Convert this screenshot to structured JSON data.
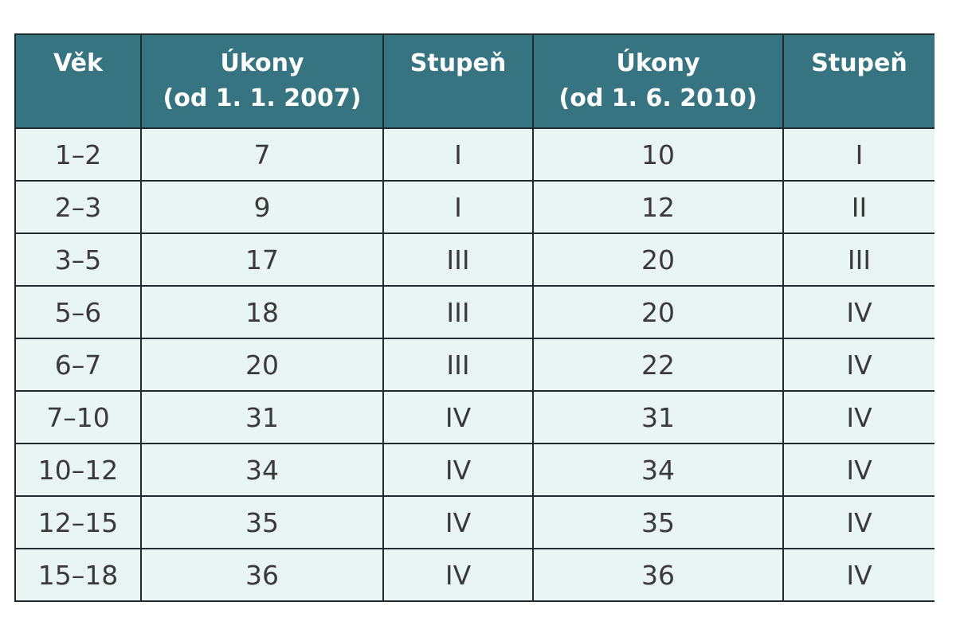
{
  "table": {
    "header": [
      [
        "Věk"
      ],
      [
        "Úkony",
        "(od 1. 1. 2007)"
      ],
      [
        "Stupeň"
      ],
      [
        "Úkony",
        "(od 1. 6. 2010)"
      ],
      [
        "Stupeň"
      ]
    ],
    "rows": [
      [
        "1–2",
        7,
        "I",
        10,
        "I"
      ],
      [
        "2–3",
        9,
        "I",
        12,
        "II"
      ],
      [
        "3–5",
        17,
        "III",
        20,
        "III"
      ],
      [
        "5–6",
        18,
        "III",
        20,
        "IV"
      ],
      [
        "6–7",
        20,
        "III",
        22,
        "IV"
      ],
      [
        "7–10",
        31,
        "IV",
        31,
        "IV"
      ],
      [
        "10–12",
        34,
        "IV",
        34,
        "IV"
      ],
      [
        "12–15",
        35,
        "IV",
        35,
        "IV"
      ],
      [
        "15–18",
        36,
        "IV",
        36,
        "IV"
      ]
    ]
  }
}
